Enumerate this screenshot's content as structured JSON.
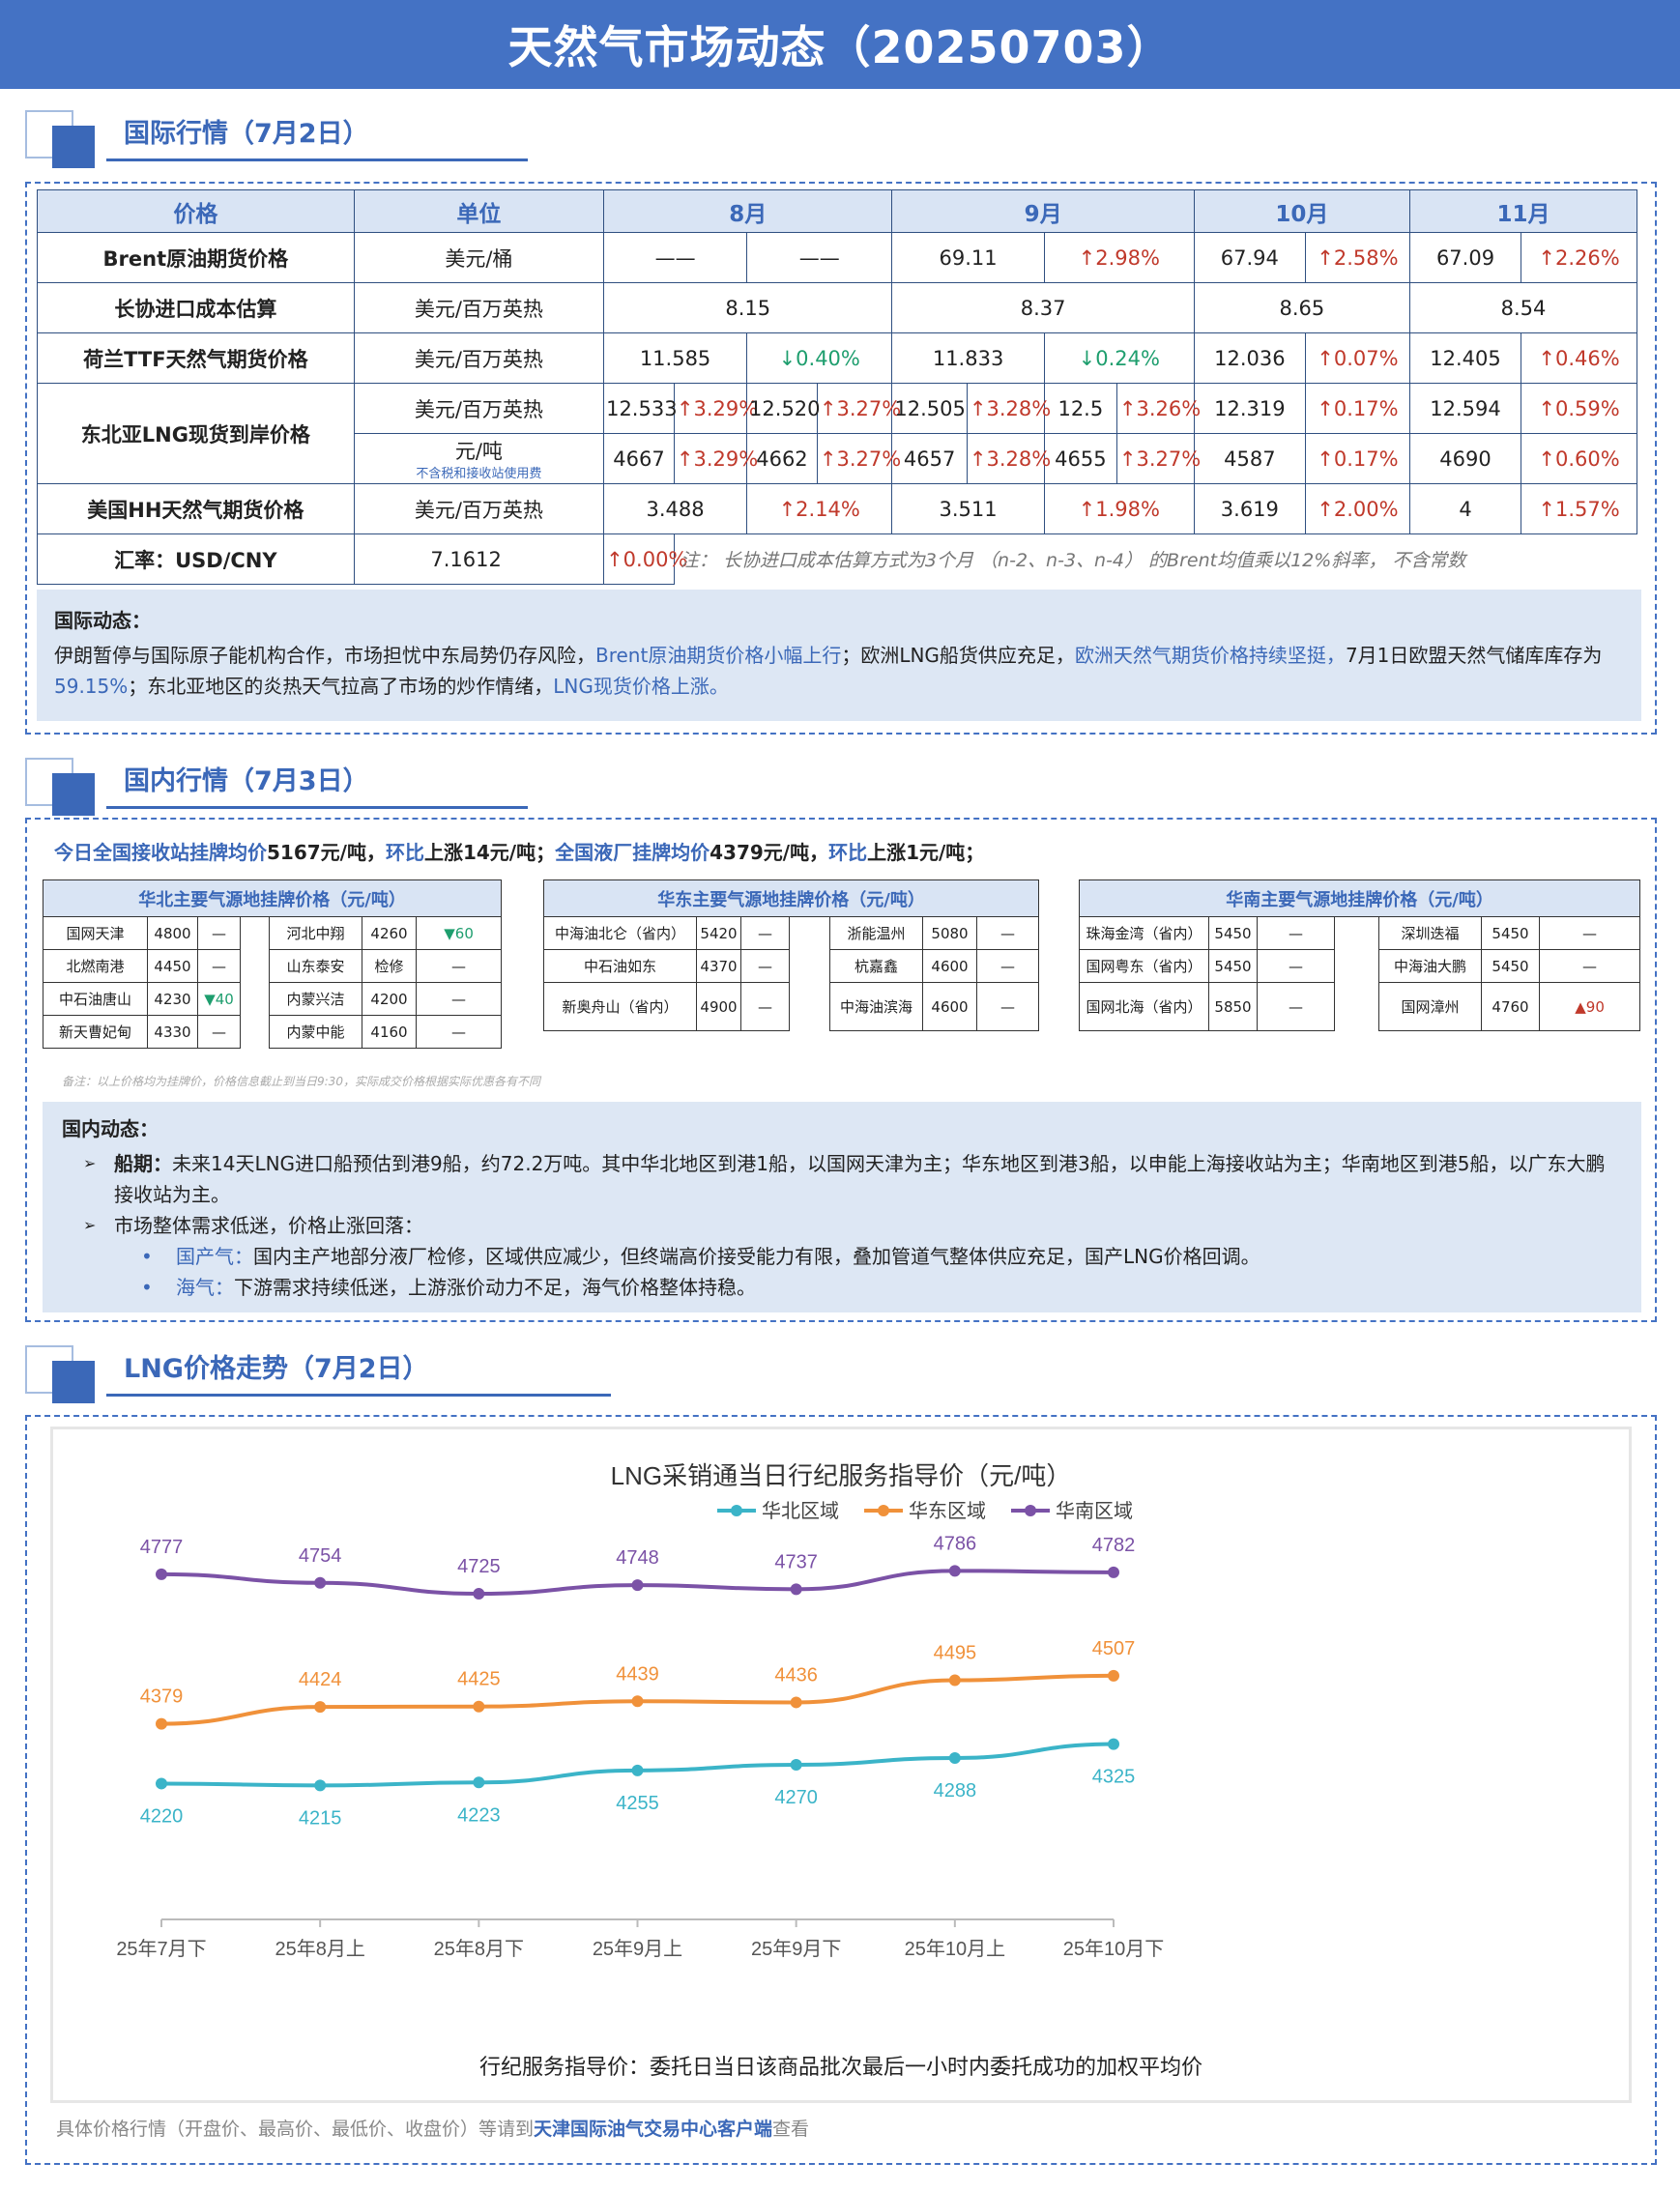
{
  "header": {
    "title": "天然气市场动态（20250703）"
  },
  "sections": {
    "intl_title": "国际行情（7月2日）",
    "dom_title": "国内行情（7月3日）",
    "lng_title": "LNG价格走势（7月2日）"
  },
  "intl_table": {
    "headers": {
      "price": "价格",
      "unit": "单位",
      "m8": "8月",
      "m9": "9月",
      "m10": "10月",
      "m11": "11月"
    },
    "brent": {
      "label": "Brent原油期货价格",
      "unit": "美元/桶",
      "aug_v": "——",
      "aug_c": "——",
      "sep_v": "69.11",
      "sep_c": "↑2.98%",
      "oct_v": "67.94",
      "oct_c": "↑2.58%",
      "nov_v": "67.09",
      "nov_c": "↑2.26%"
    },
    "ltc": {
      "label": "长协进口成本估算",
      "unit": "美元/百万英热",
      "aug": "8.15",
      "sep": "8.37",
      "oct": "8.65",
      "nov": "8.54"
    },
    "ttf": {
      "label": "荷兰TTF天然气期货价格",
      "unit": "美元/百万英热",
      "aug_v": "11.585",
      "aug_c": "↓0.40%",
      "sep_v": "11.833",
      "sep_c": "↓0.24%",
      "oct_v": "12.036",
      "oct_c": "↑0.07%",
      "nov_v": "12.405",
      "nov_c": "↑0.46%"
    },
    "nea": {
      "label": "东北亚LNG现货到岸价格",
      "unit1": "美元/百万英热",
      "unit2": "元/吨",
      "unit2_note": "不含税和接收站使用费",
      "r1": [
        "12.533",
        "↑3.29%",
        "12.520",
        "↑3.27%",
        "12.505",
        "↑3.28%",
        "12.5",
        "↑3.26%",
        "12.319",
        "↑0.17%",
        "12.594",
        "↑0.59%"
      ],
      "r2": [
        "4667",
        "↑3.29%",
        "4662",
        "↑3.27%",
        "4657",
        "↑3.28%",
        "4655",
        "↑3.27%",
        "4587",
        "↑0.17%",
        "4690",
        "↑0.60%"
      ]
    },
    "hh": {
      "label": "美国HH天然气期货价格",
      "unit": "美元/百万英热",
      "aug_v": "3.488",
      "aug_c": "↑2.14%",
      "sep_v": "3.511",
      "sep_c": "↑1.98%",
      "oct_v": "3.619",
      "oct_c": "↑2.00%",
      "nov_v": "4",
      "nov_c": "↑1.57%"
    },
    "fx": {
      "label": "汇率：USD/CNY",
      "value": "7.1612",
      "change": "↑0.00%",
      "note": "注：  长协进口成本估算方式为3个月 （n-2、n-3、n-4） 的Brent均值乘以12%斜率， 不含常数"
    }
  },
  "intl_news": {
    "heading": "国际动态：",
    "p1": "伊朗暂停与国际原子能机构合作，市场担忧中东局势仍存风险，",
    "h1": "Brent原油期货价格小幅上行",
    "p2": "；欧洲LNG船货供应充足，",
    "h2": "欧洲天然气期货价格持续坚挺，",
    "p3": "7月1日欧盟天然气储库库存为",
    "h3": "59.15%",
    "p4": "；东北亚地区的炎热天气拉高了市场的炒作情绪，",
    "h4": "LNG现货价格上涨。"
  },
  "dom_summary": {
    "a": "今日全国接收站挂牌均价",
    "b": "5167元/吨，",
    "c": "环比",
    "d": "上涨14元/吨；",
    "e": "全国液厂挂牌均价",
    "f": "4379元/吨，",
    "g": "环比",
    "h": "上涨1元/吨；"
  },
  "regions": {
    "north": {
      "title": "华北主要气源地挂牌价格（元/吨）",
      "rows": [
        [
          "国网天津",
          "4800",
          "—",
          "河北中翔",
          "4260",
          "▼60"
        ],
        [
          "北燃南港",
          "4450",
          "—",
          "山东泰安",
          "检修",
          "—"
        ],
        [
          "中石油唐山",
          "4230",
          "▼40",
          "内蒙兴洁",
          "4200",
          "—"
        ],
        [
          "新天曹妃甸",
          "4330",
          "—",
          "内蒙中能",
          "4160",
          "—"
        ]
      ]
    },
    "east": {
      "title": "华东主要气源地挂牌价格（元/吨）",
      "rows": [
        [
          "中海油北仑（省内）",
          "5420",
          "—",
          "浙能温州",
          "5080",
          "—"
        ],
        [
          "中石油如东",
          "4370",
          "—",
          "杭嘉鑫",
          "4600",
          "—"
        ],
        [
          "新奥舟山（省内）",
          "4900",
          "—",
          "中海油滨海",
          "4600",
          "—"
        ]
      ]
    },
    "south": {
      "title": "华南主要气源地挂牌价格（元/吨）",
      "rows": [
        [
          "珠海金湾（省内）",
          "5450",
          "—",
          "深圳迭福",
          "5450",
          "—"
        ],
        [
          "国网粤东（省内）",
          "5450",
          "—",
          "中海油大鹏",
          "5450",
          "—"
        ],
        [
          "国网北海（省内）",
          "5850",
          "—",
          "国网漳州",
          "4760",
          "▲90"
        ]
      ]
    }
  },
  "dom_note": "备注：以上价格均为挂牌价，价格信息截止到当日9:30，实际成交价格根据实际优惠各有不同",
  "dom_news": {
    "heading": "国内动态：",
    "b1_key": "船期：",
    "b1": "未来14天LNG进口船预估到港9船，约72.2万吨。其中华北地区到港1船，以国网天津为主；华东地区到港3船，以申能上海接收站为主；华南地区到港5船，以广东大鹏接收站为主。",
    "b2": "市场整体需求低迷，价格止涨回落：",
    "s1_key": "国产气：",
    "s1": "国内主产地部分液厂检修，区域供应减少，但终端高价接受能力有限，叠加管道气整体供应充足，国产LNG价格回调。",
    "s2_key": "海气：",
    "s2": "下游需求持续低迷，上游涨价动力不足，海气价格整体持稳。"
  },
  "chart_data": {
    "type": "line",
    "title": "LNG采销通当日行纪服务指导价（元/吨）",
    "x": [
      "25年7月下",
      "25年8月上",
      "25年8月下",
      "25年9月上",
      "25年9月下",
      "25年10月上",
      "25年10月下"
    ],
    "series": [
      {
        "name": "华北区域",
        "values": [
          4220,
          4215,
          4223,
          4255,
          4270,
          4288,
          4325
        ],
        "color": "#3bb4c8"
      },
      {
        "name": "华东区域",
        "values": [
          4379,
          4424,
          4425,
          4439,
          4436,
          4495,
          4507
        ],
        "color": "#f0913a"
      },
      {
        "name": "华南区域",
        "values": [
          4777,
          4754,
          4725,
          4748,
          4737,
          4786,
          4782
        ],
        "color": "#7b52a6"
      }
    ],
    "ylim": [
      4000,
      4900
    ],
    "grid": false,
    "legend": "top",
    "caption": "行纪服务指导价：委托日当日该商品批次最后一小时内委托成功的加权平均价"
  },
  "footer": {
    "a": "具体价格行情（开盘价、最高价、最低价、收盘价）等请到",
    "b": "天津国际油气交易中心客户端",
    "c": "查看"
  }
}
